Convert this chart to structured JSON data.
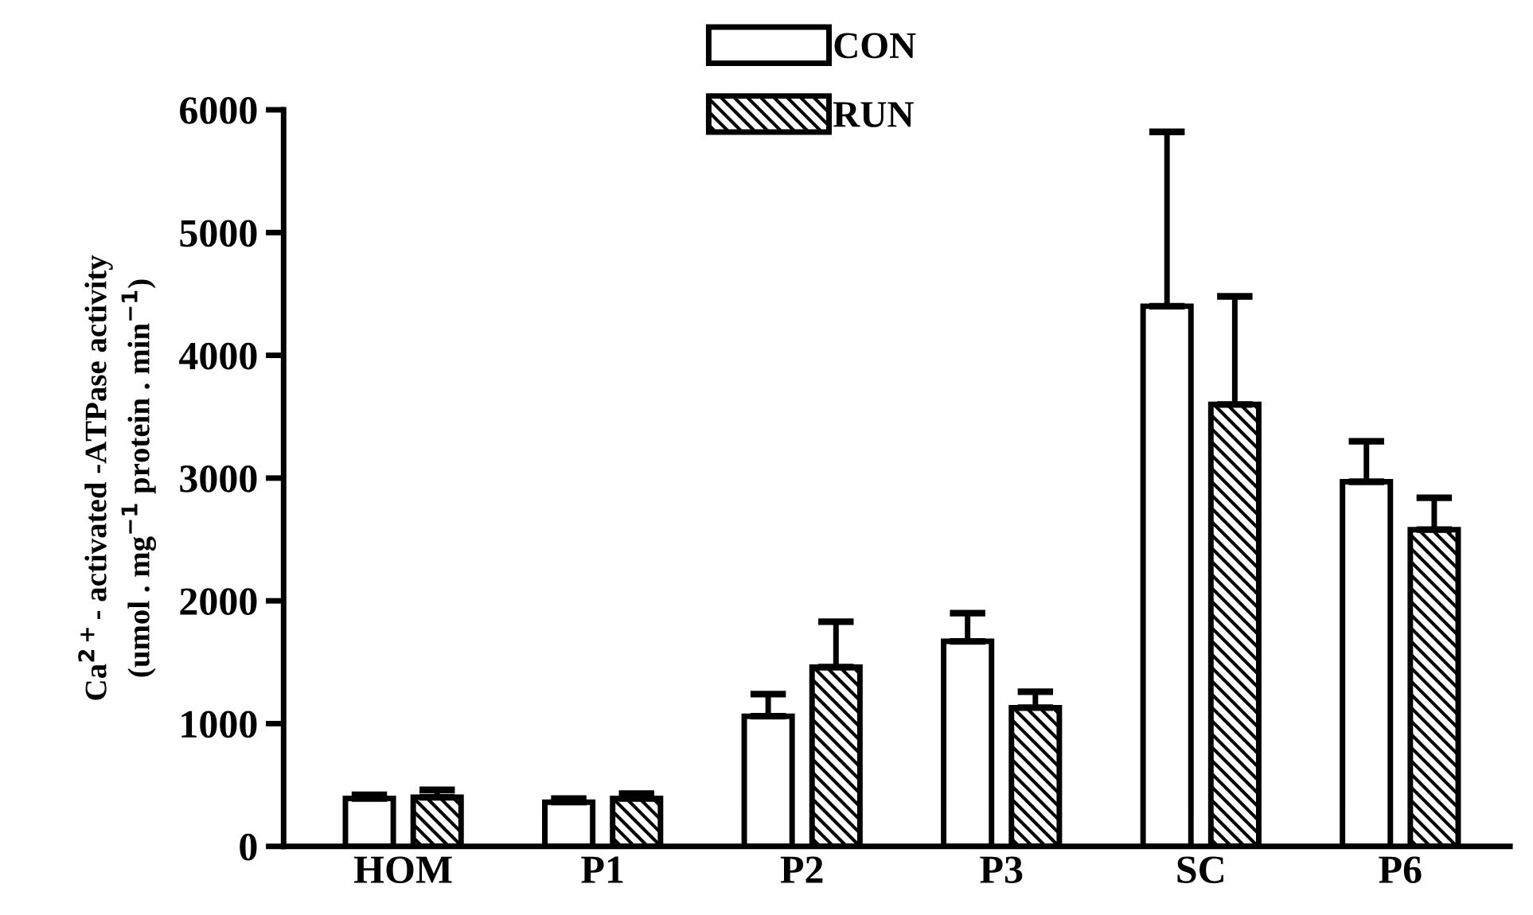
{
  "chart_data": {
    "type": "bar",
    "ylabel": "Ca$^{2+}$- activated -ATPase activity\n(umol . mg$^{−1}$ protein . min$^{−1}$)",
    "categories": [
      "HOM",
      "P1",
      "P2",
      "P3",
      "SC",
      "P6"
    ],
    "series": [
      {
        "name": "CON",
        "color": "#ffffff",
        "values": [
          390,
          360,
          1060,
          1670,
          4400,
          2970
        ],
        "errors": [
          30,
          30,
          180,
          230,
          1420,
          330
        ]
      },
      {
        "name": "RUN",
        "color": "#000000",
        "values": [
          400,
          390,
          1460,
          1130,
          3600,
          2580
        ],
        "errors": [
          60,
          40,
          370,
          130,
          880,
          260
        ]
      }
    ],
    "ylim": [
      0,
      6000
    ],
    "yticks": [
      0,
      1000,
      2000,
      3000,
      4000,
      5000,
      6000
    ],
    "legend": "top",
    "grid": false
  }
}
